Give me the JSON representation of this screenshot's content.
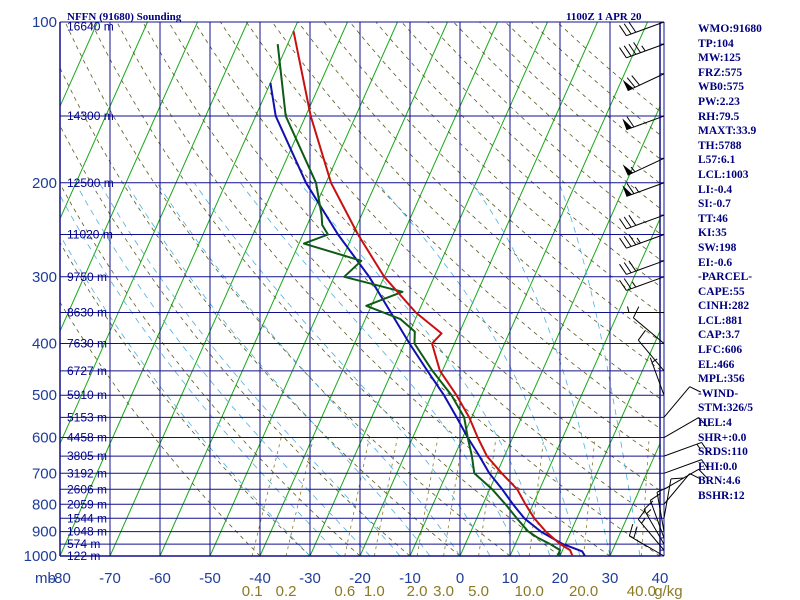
{
  "header": {
    "title": "NFFN (91680) Sounding",
    "time": "1100Z  1 APR 20"
  },
  "stats": [
    "WMO:91680",
    "TP:104",
    "MW:125",
    "FRZ:575",
    "WB0:575",
    "PW:2.23",
    "RH:79.5",
    "MAXT:33.9",
    "TH:5788",
    "L57:6.1",
    "LCL:1003",
    "LI:-0.4",
    "SI:-0.7",
    "TT:46",
    "KI:35",
    "SW:198",
    "EI:-0.6",
    "-PARCEL-",
    "CAPE:55",
    "CINH:282",
    "LCL:881",
    "CAP:3.7",
    "LFC:606",
    "EL:466",
    "MPL:356",
    "-WIND-",
    "STM:326/5",
    "HEL:4",
    "SHR+:0.0",
    "SRDS:110",
    "EHI:0.0",
    "BRN:4.6",
    "BSHR:12"
  ],
  "chart_data": {
    "type": "line",
    "title": "NFFN (91680) Sounding",
    "x_axis": {
      "unit_label": "mb",
      "range": [
        -80,
        40
      ],
      "tick_labels": [
        "-80",
        "-70",
        "-60",
        "-50",
        "-40",
        "-30",
        "-20",
        "-10",
        "0",
        "10",
        "20",
        "30",
        "40"
      ]
    },
    "y_axis": {
      "scale": "log-pressure",
      "range": [
        1000,
        100
      ],
      "tick_labels": [
        {
          "p": 100,
          "label": "100"
        },
        {
          "p": 200,
          "label": "200"
        },
        {
          "p": 300,
          "label": "300"
        },
        {
          "p": 400,
          "label": "400"
        },
        {
          "p": 500,
          "label": "500"
        },
        {
          "p": 600,
          "label": "600"
        },
        {
          "p": 700,
          "label": "700"
        },
        {
          "p": 800,
          "label": "800"
        },
        {
          "p": 900,
          "label": "900"
        },
        {
          "p": 1000,
          "label": "1000"
        }
      ]
    },
    "height_labels": [
      {
        "p": 102,
        "label": "16640 m"
      },
      {
        "p": 150,
        "label": "14300 m"
      },
      {
        "p": 200,
        "label": "12500 m"
      },
      {
        "p": 250,
        "label": "11020 m"
      },
      {
        "p": 300,
        "label": "9750 m"
      },
      {
        "p": 350,
        "label": "8630 m"
      },
      {
        "p": 400,
        "label": "7630 m"
      },
      {
        "p": 450,
        "label": "6727 m"
      },
      {
        "p": 500,
        "label": "5910 m"
      },
      {
        "p": 550,
        "label": "5153 m"
      },
      {
        "p": 600,
        "label": "4458 m"
      },
      {
        "p": 650,
        "label": "3805 m"
      },
      {
        "p": 700,
        "label": "3192 m"
      },
      {
        "p": 750,
        "label": "2606 m"
      },
      {
        "p": 800,
        "label": "2059 m"
      },
      {
        "p": 850,
        "label": "1544 m"
      },
      {
        "p": 900,
        "label": "1048 m"
      },
      {
        "p": 950,
        "label": "574 m"
      },
      {
        "p": 1000,
        "label": "122 m"
      }
    ],
    "mixing_ratio_labels": [
      "0.1",
      "0.2",
      "0.6",
      "1.0",
      "2.0",
      "3.0",
      "5.0",
      "10.0",
      "20.0",
      "40.0",
      "g/kg"
    ],
    "temperature": [
      [
        1000,
        22.5
      ],
      [
        975,
        21.5
      ],
      [
        950,
        19.0
      ],
      [
        925,
        17.0
      ],
      [
        900,
        15.0
      ],
      [
        850,
        11.5
      ],
      [
        800,
        8.5
      ],
      [
        750,
        5.5
      ],
      [
        700,
        1.0
      ],
      [
        650,
        -3.5
      ],
      [
        600,
        -7.0
      ],
      [
        550,
        -10.5
      ],
      [
        500,
        -15.0
      ],
      [
        450,
        -20.5
      ],
      [
        400,
        -24.5
      ],
      [
        383,
        -23.5
      ],
      [
        350,
        -30.5
      ],
      [
        300,
        -40.0
      ],
      [
        250,
        -49.0
      ],
      [
        200,
        -59.0
      ],
      [
        150,
        -69.0
      ],
      [
        104,
        -80.0
      ]
    ],
    "dewpoint": [
      [
        1000,
        19.5
      ],
      [
        975,
        19.5
      ],
      [
        950,
        17.0
      ],
      [
        925,
        14.0
      ],
      [
        900,
        11.5
      ],
      [
        850,
        8.0
      ],
      [
        800,
        4.5
      ],
      [
        750,
        0.5
      ],
      [
        700,
        -4.5
      ],
      [
        650,
        -6.5
      ],
      [
        600,
        -9.0
      ],
      [
        550,
        -11.5
      ],
      [
        500,
        -16.0
      ],
      [
        450,
        -22.0
      ],
      [
        400,
        -28.0
      ],
      [
        380,
        -29.0
      ],
      [
        360,
        -33.0
      ],
      [
        340,
        -41.0
      ],
      [
        320,
        -35.0
      ],
      [
        300,
        -48.0
      ],
      [
        280,
        -46.0
      ],
      [
        260,
        -59.0
      ],
      [
        250,
        -55.0
      ],
      [
        240,
        -57.0
      ],
      [
        230,
        -58.0
      ],
      [
        200,
        -62.0
      ],
      [
        150,
        -74.0
      ],
      [
        110,
        -82.0
      ]
    ],
    "parcel": [
      [
        1000,
        25.0
      ],
      [
        980,
        24.0
      ],
      [
        950,
        19.5
      ],
      [
        900,
        14.0
      ],
      [
        850,
        9.5
      ],
      [
        800,
        6.0
      ],
      [
        750,
        2.5
      ],
      [
        700,
        -1.5
      ],
      [
        650,
        -5.0
      ],
      [
        600,
        -9.0
      ],
      [
        550,
        -13.0
      ],
      [
        500,
        -17.5
      ],
      [
        450,
        -23.0
      ],
      [
        400,
        -29.0
      ],
      [
        350,
        -35.5
      ],
      [
        300,
        -43.0
      ],
      [
        250,
        -53.0
      ],
      [
        200,
        -64.0
      ],
      [
        150,
        -76.0
      ],
      [
        130,
        -80.0
      ]
    ],
    "wind_barbs": [
      {
        "p": 1000,
        "dir": 300,
        "spd": 20
      },
      {
        "p": 975,
        "dir": 320,
        "spd": 15
      },
      {
        "p": 950,
        "dir": 330,
        "spd": 15
      },
      {
        "p": 925,
        "dir": 340,
        "spd": 10
      },
      {
        "p": 900,
        "dir": 350,
        "spd": 10
      },
      {
        "p": 850,
        "dir": 10,
        "spd": 10
      },
      {
        "p": 800,
        "dir": 40,
        "spd": 10
      },
      {
        "p": 750,
        "dir": 60,
        "spd": 10
      },
      {
        "p": 700,
        "dir": 70,
        "spd": 10
      },
      {
        "p": 650,
        "dir": 70,
        "spd": 15
      },
      {
        "p": 600,
        "dir": 60,
        "spd": 10
      },
      {
        "p": 550,
        "dir": 40,
        "spd": 10
      },
      {
        "p": 500,
        "dir": 340,
        "spd": 5
      },
      {
        "p": 450,
        "dir": 320,
        "spd": 10
      },
      {
        "p": 400,
        "dir": 310,
        "spd": 10
      },
      {
        "p": 350,
        "dir": 270,
        "spd": 5
      },
      {
        "p": 300,
        "dir": 250,
        "spd": 25
      },
      {
        "p": 280,
        "dir": 250,
        "spd": 30
      },
      {
        "p": 250,
        "dir": 250,
        "spd": 35
      },
      {
        "p": 230,
        "dir": 250,
        "spd": 30
      },
      {
        "p": 200,
        "dir": 250,
        "spd": 65
      },
      {
        "p": 180,
        "dir": 245,
        "spd": 55
      },
      {
        "p": 150,
        "dir": 250,
        "spd": 60
      },
      {
        "p": 125,
        "dir": 245,
        "spd": 70
      },
      {
        "p": 110,
        "dir": 250,
        "spd": 45
      },
      {
        "p": 100,
        "dir": 250,
        "spd": 30
      }
    ]
  }
}
